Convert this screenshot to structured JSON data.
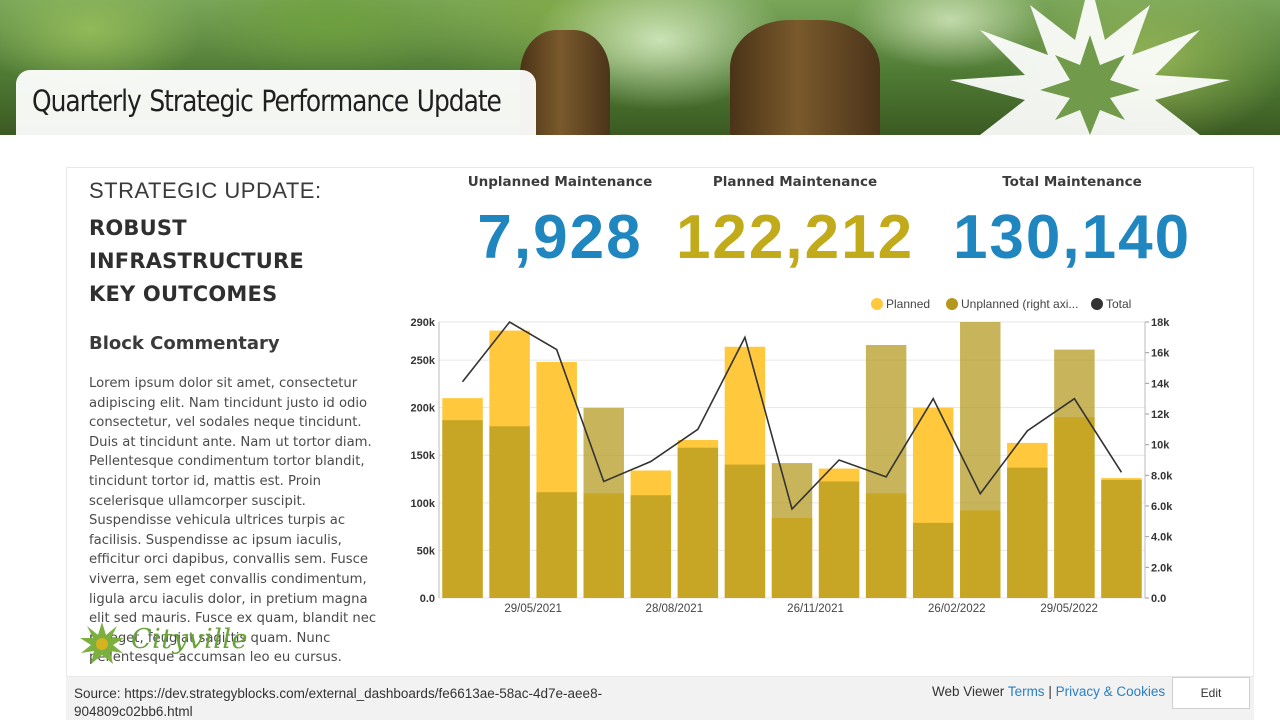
{
  "banner": {
    "title": "Quarterly Strategic Performance Update"
  },
  "left": {
    "heading_light": "STRATEGIC UPDATE:",
    "heading_bold_1": "ROBUST INFRASTRUCTURE",
    "heading_bold_2": "KEY OUTCOMES",
    "sub_heading": "Block Commentary",
    "commentary": "Lorem ipsum dolor sit amet, consectetur adipiscing elit. Nam tincidunt justo id odio consectetur, vel sodales neque tincidunt. Duis at tincidunt ante. Nam ut tortor diam. Pellentesque condimentum tortor blandit, tincidunt tortor id, mattis est. Proin scelerisque ullamcorper suscipit. Suspendisse vehicula ultrices turpis ac facilisis. Suspendisse ac ipsum iaculis, efficitur orci dapibus, convallis sem. Fusce viverra, sem eget convallis condimentum, ligula arcu iaculis dolor, in pretium magna elit sed mauris. Fusce ex quam, blandit nec mi eget, feugiat sagittis quam. Nunc pellentesque accumsan leo eu cursus.",
    "logo_text": "Cityville"
  },
  "kpis": [
    {
      "label": "Unplanned Maintenance",
      "value": "7,928",
      "color": "#1f86bf"
    },
    {
      "label": "Planned Maintenance",
      "value": "122,212",
      "color": "#c2ab1a"
    },
    {
      "label": "Total Maintenance",
      "value": "130,140",
      "color": "#1f86bf"
    }
  ],
  "colors": {
    "planned": "#ffc83d",
    "unplanned": "#b3981c",
    "overlap": "#b59b24",
    "total": "#333333",
    "accent": "#2a7fc1"
  },
  "chart_data": {
    "type": "bar",
    "legend": [
      "Planned",
      "Unplanned (right axi...",
      "Total"
    ],
    "legend_position": "top-right",
    "y_left": {
      "ticks": [
        "0.0",
        "50k",
        "100k",
        "150k",
        "200k",
        "250k",
        "290k"
      ],
      "range": [
        0,
        290000
      ]
    },
    "y_right": {
      "ticks": [
        "0.0",
        "2.0k",
        "4.0k",
        "6.0k",
        "8.0k",
        "10k",
        "12k",
        "14k",
        "16k",
        "18k"
      ],
      "range": [
        0,
        18000
      ]
    },
    "x_tick_labels": [
      "29/05/2021",
      "28/08/2021",
      "26/11/2021",
      "26/02/2022",
      "29/05/2022"
    ],
    "x_tick_positions_index": [
      1.5,
      4.5,
      7.5,
      10.5,
      13.5
    ],
    "grid": true,
    "series": [
      {
        "name": "Planned",
        "axis": "left",
        "values": [
          210000,
          281000,
          248000,
          110000,
          134000,
          166000,
          264000,
          84000,
          136000,
          110000,
          200000,
          92000,
          163000,
          190000,
          126000
        ]
      },
      {
        "name": "Unplanned (right axi...",
        "axis": "right",
        "values": [
          11600,
          11200,
          6900,
          12400,
          6700,
          9800,
          8700,
          8800,
          7600,
          16500,
          4900,
          18000,
          8500,
          16200,
          7700
        ]
      },
      {
        "name": "Total",
        "axis": "right",
        "values": [
          14100,
          18000,
          16200,
          7600,
          8900,
          11000,
          17000,
          5800,
          9000,
          7900,
          13000,
          6800,
          10900,
          13000,
          8200
        ]
      }
    ]
  },
  "footer": {
    "source": "Source: https://dev.strategyblocks.com/external_dashboards/fe6613ae-58ac-4d7e-aee8-904809c02bb6.html",
    "viewer_label": "Web Viewer",
    "terms": "Terms",
    "separator": "|",
    "privacy": "Privacy & Cookies",
    "edit": "Edit"
  }
}
